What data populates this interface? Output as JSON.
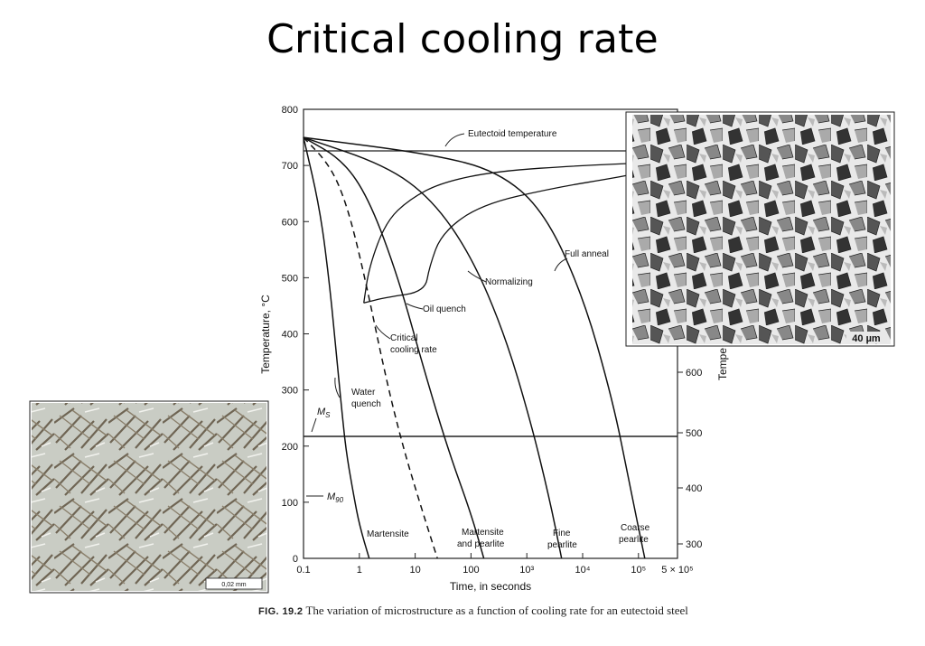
{
  "slide": {
    "title": "Critical cooling rate"
  },
  "figure": {
    "caption_label": "FIG. 19.2",
    "caption_text": "The variation of microstructure as a function of cooling rate for an eutectoid steel"
  },
  "chart_data": {
    "type": "line",
    "xlabel": "Time, in seconds",
    "ylabel_left": "Temperature, °C",
    "ylabel_right": "Tempe",
    "xscale": "log",
    "xlim": [
      0.1,
      500000
    ],
    "ylim": [
      0,
      800
    ],
    "x_ticks": [
      "0.1",
      "1",
      "10",
      "100",
      "10³",
      "10⁴",
      "10⁵",
      "5 × 10⁵"
    ],
    "y_ticks": [
      "0",
      "100",
      "200",
      "300",
      "400",
      "500",
      "600",
      "700",
      "800"
    ],
    "right_ticks": [
      "300",
      "400",
      "500",
      "600"
    ],
    "reference_lines": [
      {
        "label": "Eutectoid temperature",
        "y": 727
      },
      {
        "label": "M_S",
        "y": 220
      },
      {
        "label": "M_90",
        "y": 110
      }
    ],
    "curves": [
      {
        "name": "Water quench",
        "x": [
          0.1,
          0.2,
          0.3,
          0.4,
          0.5,
          0.6,
          0.8,
          1.0,
          1.5
        ],
        "y": [
          750,
          620,
          480,
          350,
          250,
          180,
          110,
          60,
          0
        ]
      },
      {
        "name": "Critical cooling rate",
        "x": [
          0.1,
          0.3,
          0.6,
          1.2,
          3,
          6,
          12,
          25
        ],
        "y": [
          750,
          700,
          630,
          510,
          320,
          200,
          100,
          0
        ]
      },
      {
        "name": "Oil quench",
        "x": [
          0.1,
          0.5,
          1.5,
          5,
          15,
          40,
          100,
          170
        ],
        "y": [
          750,
          710,
          640,
          500,
          330,
          190,
          80,
          0
        ]
      },
      {
        "name": "Normalizing",
        "x": [
          0.1,
          3,
          20,
          100,
          400,
          1200,
          2500,
          4200
        ],
        "y": [
          750,
          700,
          640,
          540,
          400,
          240,
          110,
          0
        ]
      },
      {
        "name": "Full anneal",
        "x": [
          0.1,
          20,
          300,
          2000,
          10000,
          35000,
          70000,
          130000
        ],
        "y": [
          750,
          720,
          690,
          620,
          470,
          280,
          130,
          0
        ]
      }
    ],
    "transformation_curves": [
      {
        "name": "start",
        "x": [
          1.2,
          1.5,
          3,
          8,
          30,
          300,
          10000,
          150000
        ],
        "y": [
          455,
          520,
          600,
          640,
          670,
          690,
          700,
          705
        ]
      },
      {
        "name": "finish",
        "x": [
          1.2,
          3,
          15,
          18,
          30,
          150,
          3000,
          50000,
          150000
        ],
        "y": [
          455,
          465,
          475,
          520,
          580,
          630,
          660,
          680,
          690
        ]
      }
    ],
    "annotations": [
      "Eutectoid temperature",
      "Full anneal",
      "Normalizing",
      "Oil quench",
      "Critical",
      "cooling rate",
      "Water",
      "quench",
      "M",
      "S",
      "M",
      "90",
      "Martensite",
      "Martensite",
      "and pearlite",
      "Fine",
      "pearlite",
      "Coarse",
      "pearlite"
    ]
  },
  "micrograph_right": {
    "scale_label": "40 µm"
  },
  "micrograph_left": {
    "scale_label": "0,02 mm"
  }
}
